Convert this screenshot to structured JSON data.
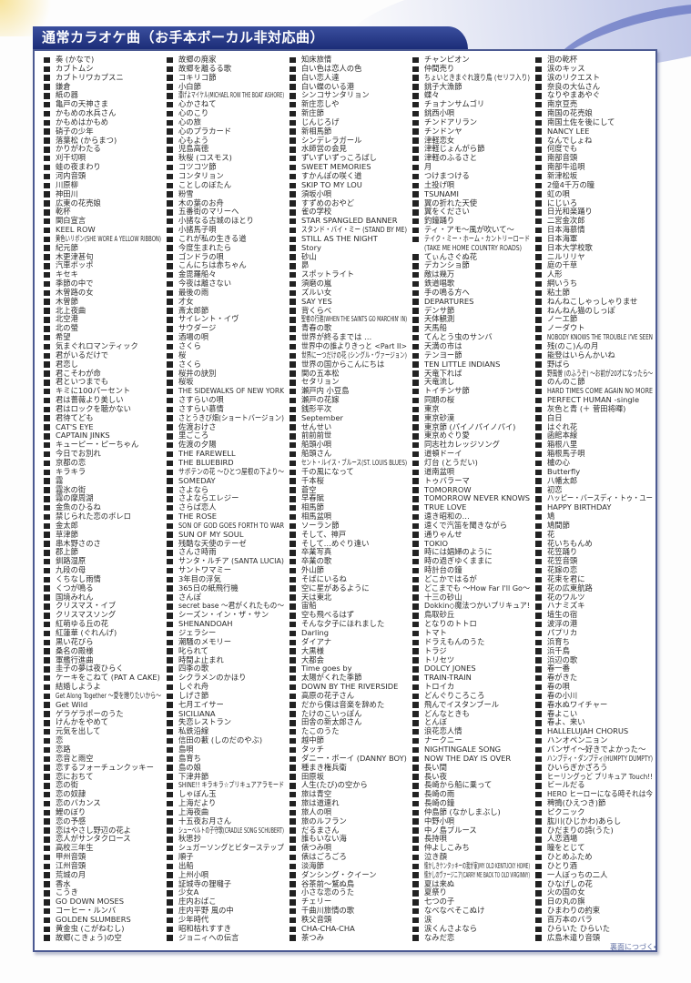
{
  "title": "通常カラオケ曲（お手本ボーカル非対応曲）",
  "footer": "裏面につづく➡",
  "colors": {
    "title_bar": "#1c2d78",
    "border": "#4c5a92",
    "bullet": "#222222"
  },
  "columns": [
    [
      "奏 (かなで)",
      "カブトムシ",
      "カブトリワカプスニ",
      "鎌倉",
      "紙の器",
      "亀戸の天神さま",
      "かもめの水兵さん",
      "かもめはかもめ",
      "硝子の少年",
      "落葉松 (からまつ)",
      "かりがわたる",
      "刈干切唄",
      "蛙の夜まわり",
      "河内音頭",
      "川原柳",
      "神田川",
      "広東の花売娘",
      "乾杯",
      "関白宣言",
      "KEEL ROW",
      "黄色いリボン(SHE WORE A YELLOW RIBBON)",
      "紀元節",
      "木更津甚句",
      "汽車ポッポ",
      "キセキ",
      "季節の中で",
      "木曽路の女",
      "木曽節",
      "北上夜曲",
      "北空港",
      "北の螢",
      "希望",
      "気まぐれロマンティック",
      "君がいるだけで",
      "君恋し",
      "君こそわが命",
      "君といつまでも",
      "キミに100パーセント",
      "君は薔薇より美しい",
      "君はロックを聴かない",
      "君待てども",
      "CAT'S EYE",
      "CAPTAIN JINKS",
      "キューピー・ピーちゃん",
      "今日でお別れ",
      "京都の恋",
      "キラキラ",
      "霧",
      "霧氷の街",
      "霧の摩周湖",
      "金魚のひるね",
      "禁じられた恋のボレロ",
      "金太郎",
      "草津節",
      "串木野さのさ",
      "郡上節",
      "釧路湿原",
      "九段の母",
      "くちなし雨情",
      "くつが鳴る",
      "国境みれん",
      "クリスマス・イブ",
      "クリスマスソング",
      "紅萌ゆる丘の花",
      "紅蓮華 (ぐれんげ)",
      "黒い花びら",
      "桑名の殿様",
      "軍艦行進曲",
      "圭子の夢は夜ひらく",
      "ケーキをこねて (PAT A CAKE)",
      "結婚しようよ",
      "Get Along Together ～愛を贈りたいから～",
      "Get Wild",
      "ゲラゲラポーのうた",
      "けんかをやめて",
      "元気を出して",
      "恋",
      "恋路",
      "恋音と雨空",
      "恋するフォーチュンクッキー",
      "恋におちて",
      "恋の街",
      "恋の奴隷",
      "恋のバカンス",
      "鯉のぼり",
      "恋の予感",
      "恋はやさし野辺の花よ",
      "恋人がサンタクロース",
      "高校三年生",
      "甲州音頭",
      "江州音頭",
      "荒城の月",
      "香水",
      "こうき",
      "GO DOWN MOSES",
      "コーヒー・ルンバ",
      "GOLDEN SLUMBERS",
      "黄金虫 (こがねむし)",
      "故郷(こきょう)の空"
    ],
    [
      "故郷の廃家",
      "故郷を離るる歌",
      "コキリコ節",
      "小白節",
      "漕げよマイケル(MICHAEL ROW THE BOAT ASHORE)",
      "心かさねて",
      "心のこり",
      "心の旅",
      "心のプラカード",
      "心もよう",
      "児島高徳",
      "秋桜 (コスモス)",
      "コツコツ節",
      "コンタリョン",
      "ことしのぼたん",
      "粉雪",
      "木の葉のお舟",
      "五番街のマリーへ",
      "小諸なる古城のほとり",
      "小諸馬子唄",
      "これが私の生きる道",
      "今度生まれたら",
      "ゴンドラの唄",
      "こんにちは赤ちゃん",
      "金毘羅船々",
      "今夜は離さない",
      "最後の雨",
      "才女",
      "斎太郎節",
      "サイレント・イヴ",
      "サウダージ",
      "酒場の唄",
      "さくら",
      "桜",
      "さくら",
      "桜井の訣別",
      "桜坂",
      "THE SIDEWALKS OF NEW YORK",
      "さすらいの唄",
      "さすらい慕情",
      "さとうきび畑(ショートバージョン)",
      "佐渡おけさ",
      "里ごころ",
      "佐渡の夕陽",
      "THE FAREWELL",
      "THE BLUEBIRD",
      "サボテンの花 ～ひとつ屋根の下より～",
      "SOMEDAY",
      "さよなら",
      "さよならエレジー",
      "さらば恋人",
      "THE ROSE",
      "SON OF GOD GOES FORTH TO WAR",
      "SUN OF MY SOUL",
      "残酷な天使のテーゼ",
      "さんさ時雨",
      "サンタ・ルチア (SANTA LUCIA)",
      "サントワマミー",
      "3年目の浮気",
      "365日の紙飛行機",
      "さんぽ",
      "secret base ～君がくれたもの～",
      "シーズン・イン・ザ・サン",
      "SHENANDOAH",
      "ジェラシー",
      "潮騒のメモリー",
      "叱られて",
      "時間よ止まれ",
      "四季の歌",
      "シクラメンのかほり",
      "しぐれ舟",
      "しげさ節",
      "七月エイサー",
      "SICILIANA",
      "失恋レストラン",
      "私鉄沿線",
      "信田の藪 (しのだのやぶ)",
      "島唄",
      "島育ち",
      "島の娘",
      "下津井節",
      "SHINE!! キラキラ☆プリキュアアラモード",
      "しゃぼん玉",
      "上海だより",
      "上海夜曲",
      "十五夜お月さん",
      "シューベルトの子守歌(CRADLE SONG SCHUBERT)",
      "秋思抄",
      "シュガーソングとビターステップ",
      "順子",
      "出船",
      "上州小唄",
      "証城寺の狸囃子",
      "少女A",
      "庄内おばこ",
      "庄内平野 風の中",
      "少年時代",
      "昭和枯れすすき",
      "ジョニィへの伝言"
    ],
    [
      "知床旅情",
      "白い色は恋人の色",
      "白い恋人達",
      "白い蝶のいる港",
      "シンコサンタリョン",
      "新庄恋しや",
      "新庄節",
      "じんじろげ",
      "新相馬節",
      "シンデレラガール",
      "水師営の会見",
      "ずいずいずっころばし",
      "SWEET MEMORIES",
      "すかんぽの咲く道",
      "SKIP TO MY LOU",
      "須坂小唄",
      "すずめのおやど",
      "雀の学校",
      "STAR SPANGLED BANNER",
      "スタンド・バイ・ミー (STAND BY ME)",
      "STILL AS THE NIGHT",
      "Story",
      "砂山",
      "昴",
      "スポットライト",
      "須磨の嵐",
      "ズルい女",
      "SAY YES",
      "背くらべ",
      "聖者の行進(WHEN THE SAINTS GO MARCHIN' IN)",
      "青春の歌",
      "世界が終るまでは …",
      "世界中の誰よりきっと <Part II>",
      "世界に一つだけの花 (シングル・ヴァージョン)",
      "世界の国からこんにちは",
      "関の五本松",
      "セタリョン",
      "瀬戸内 小豆島",
      "瀬戸の花嫁",
      "銭形平次",
      "September",
      "せんせい",
      "前前前世",
      "船頭小唄",
      "船頭さん",
      "セント・ルイス・ブルース(ST. LOUIS BLUES)",
      "千の風になって",
      "千本桜",
      "蒼空",
      "早春賦",
      "相馬節",
      "相馬盆唄",
      "ソーラン節",
      "そして、神戸",
      "そして…めぐり逢い",
      "卒業写真",
      "卒業の歌",
      "外山節",
      "そばにいるね",
      "空に星があるように",
      "天は東北",
      "宙船",
      "空も飛べるはず",
      "そんな夕子にほれました",
      "Darling",
      "ダイアナ",
      "大黒様",
      "大都会",
      "Time goes by",
      "太陽がくれた季節",
      "DOWN BY THE RIVERSIDE",
      "高原の花子さん",
      "だから僕は音楽を辞めた",
      "たけのこいっぽん",
      "田舎の新太郎さん",
      "たこのうた",
      "越中節",
      "タッチ",
      "ダニー・ボーイ (DANNY BOY)",
      "種まき権兵衛",
      "田原坂",
      "人生(たび)の空から",
      "旅は青空",
      "旅は道連れ",
      "旅人の唄",
      "旅のルフラン",
      "だるまさん",
      "誰もいない海",
      "俵つみ唄",
      "俵はごろごろ",
      "淡海節",
      "ダンシング・クイーン",
      "谷茶前～鷲ぬ鳥",
      "小さな恋のうた",
      "チェリー",
      "千曲川旅情の歌",
      "秩父音頭",
      "CHA-CHA-CHA",
      "茶つみ"
    ],
    [
      "チャンピオン",
      "仲間売り",
      "ちょいときまぐれ渡り鳥 (セリフ入り)",
      "銚子大漁節",
      "蝶々",
      "チョナンサムゴリ",
      "銚西小唄",
      "チンドアリラン",
      "チンドンヤ",
      "津軽恋女",
      "津軽じょんがら節",
      "津軽のふるさと",
      "月",
      "つけまつける",
      "土投げ唄",
      "TSUNAMI",
      "翼の折れた天使",
      "翼をください",
      "釣鐘踊り",
      "ティ・アモ～風が吹いて～",
      "テイク・ミー・ホーム・カントリーロード\n(TAKE ME HOME COUNTRY ROADS)",
      "てぃんさぐぬ花",
      "デカンショ節",
      "敵は幾万",
      "鉄道唱歌",
      "手の鳴る方へ",
      "DEPARTURES",
      "デンサ節",
      "天体観測",
      "天馬船",
      "てんとう虫のサンバ",
      "天満の市は",
      "テンヨー節",
      "TEN LITTLE INDIANS",
      "天竜下れば",
      "天竜流し",
      "トイチンサ節",
      "同期の桜",
      "東京",
      "東京砂漠",
      "東京節 (パイノパイノパイ)",
      "東京めぐり愛",
      "同志社カレッジソング",
      "道頓ドーイ",
      "灯台 (とうだい)",
      "道南盆唄",
      "トゥバラーマ",
      "TOMORROW",
      "TOMORROW NEVER KNOWS",
      "TRUE LOVE",
      "遠き昭和の…",
      "遠くで汽笛を聞きながら",
      "通りゃんせ",
      "TOKIO",
      "時には娼婦のように",
      "時の過ぎゆくままに",
      "時計台の鐘",
      "どこかではるが",
      "どこまでも ～How Far I'll Go～",
      "十三の砂山",
      "Dokkin◇魔法つかいプリキュア!",
      "鳥取砂丘",
      "となりのトトロ",
      "トマト",
      "ドラえもんのうた",
      "トラジ",
      "トリセツ",
      "DOLCY JONES",
      "TRAIN-TRAIN",
      "トロイカ",
      "どんぐりころころ",
      "飛んでイスタンブール",
      "どんなときも",
      "とんぼ",
      "浪花恋人情",
      "ナークニー",
      "NIGHTINGALE SONG",
      "NOW THE DAY IS OVER",
      "長い間",
      "長い夜",
      "長崎から船に乗って",
      "長崎の雨",
      "長崎の鐘",
      "仲島節 (なかしまぶし)",
      "中野小唄",
      "中ノ島ブルース",
      "長持唄",
      "仲よしこみち",
      "泣き顔",
      "懐かしきケンタッキーの我が家(MY OLD KENTUCKY HOME)",
      "懐かしのヴァージニア(CARRY ME BACK TO OLD VIRGINNY)",
      "夏は来ぬ",
      "夏祭り",
      "七つの子",
      "なべなべそこぬけ",
      "涙",
      "涙くんさよなら",
      "なみだ恋"
    ],
    [
      "泪の乾杯",
      "涙のキッス",
      "涙のリクエスト",
      "奈良の大仏さん",
      "なりやまあやぐ",
      "南京豆売",
      "南国の花売娘",
      "南国土佐を後にして",
      "NANCY LEE",
      "なんでしょね",
      "何度でも",
      "南部音頭",
      "南部牛追唄",
      "新津松坂",
      "2億4千万の瞳",
      "虹の唄",
      "にじいろ",
      "日光和楽踊り",
      "二宮金次郎",
      "日本海慕情",
      "日本海軍",
      "日本大学校歌",
      "ニルリリヤ",
      "庭の千草",
      "人形",
      "網いうち",
      "粘土節",
      "ねんねこしゃっしゃりませ",
      "ねんねん猫のしっぽ",
      "ノーエ節",
      "ノーダウト",
      "NOBODY KNOWS THE TROUBLE I'VE SEEN",
      "残(のこ)んの月",
      "能登はいらんかいね",
      "野ばら",
      "野風僧 (のふうぞ) ～お前が20才になったら～",
      "のんのこ節",
      "HARD TIMES COME AGAIN NO MORE",
      "PERFECT HUMAN -single",
      "灰色と青 (＋ 菅田将暉)",
      "白日",
      "はぐれ花",
      "函館本線",
      "箱根八里",
      "箱根馬子唄",
      "櫨の心",
      "Butterfly",
      "八幡太郎",
      "初恋",
      "ハッピー・バースディ・トゥ・ユー",
      "HAPPY BIRTHDAY",
      "鳩",
      "鳩間節",
      "花",
      "花いちもんめ",
      "花笠踊り",
      "花笠音頭",
      "花嫁の恋",
      "花束を君に",
      "花の広東航路",
      "花のワルツ",
      "ハナミズキ",
      "埴生の宿",
      "波浮の港",
      "パプリカ",
      "浜育ち",
      "浜千鳥",
      "浜辺の歌",
      "春一番",
      "春がきた",
      "春の唄",
      "春の小川",
      "春水ぬワイチャー",
      "春よこい",
      "春よ、来い",
      "HALLELUJAH CHORUS",
      "ハンオペンニョン",
      "バンザイ～好きでよかった～",
      "ハンプティ・ダンプティ(HUMPTY DUMPTY)",
      "ひいらぎかざろう",
      "ヒーリングっど プリキュア Touch!!",
      "ビールだる",
      "HERO ヒーローになる時それは今",
      "稗搗(ひえつき)節",
      "ピクニック",
      "肱川(ひじかわ)あらし",
      "ひだまりの詩(うた)",
      "人恋酒場",
      "瞳をとじて",
      "ひとめふため",
      "ひとり酒",
      "一人ぼっちの二人",
      "ひなげしの花",
      "火の国の女",
      "日の丸の旗",
      "ひまわりの約束",
      "百万本のバラ",
      "ひらいた ひらいた",
      "広島木遣り音頭"
    ]
  ]
}
